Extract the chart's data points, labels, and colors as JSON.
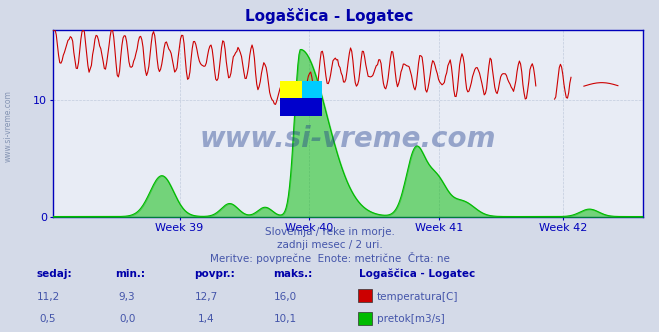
{
  "title": "Logaščica - Logatec",
  "title_color": "#0000aa",
  "bg_color": "#d4dae8",
  "plot_bg_color": "#e8ecf5",
  "grid_color": "#b8c4d8",
  "axis_color": "#0000bb",
  "text_color": "#4455aa",
  "watermark": "www.si-vreme.com",
  "watermark_color": "#1a3a8a",
  "subtitle_lines": [
    "Slovenija / reke in morje.",
    "zadnji mesec / 2 uri.",
    "Meritve: povprečne  Enote: metrične  Črta: ne"
  ],
  "xlabel_ticks": [
    "Week 39",
    "Week 40",
    "Week 41",
    "Week 42"
  ],
  "xlabel_tick_x": [
    0.215,
    0.435,
    0.655,
    0.865
  ],
  "ylim_max": 16.0,
  "flow_max": 10.1,
  "temp_color": "#cc0000",
  "flow_color": "#00bb00",
  "table_headers": [
    "sedaj:",
    "min.:",
    "povpr.:",
    "maks.:"
  ],
  "table_station": "Logaščica - Logatec",
  "table_rows": [
    {
      "label": "temperatura[C]",
      "color": "#cc0000",
      "values": [
        "11,2",
        "9,3",
        "12,7",
        "16,0"
      ]
    },
    {
      "label": "pretok[m3/s]",
      "color": "#00bb00",
      "values": [
        "0,5",
        "0,0",
        "1,4",
        "10,1"
      ]
    }
  ],
  "logo_colors": [
    "#ffff00",
    "#00ccff",
    "#0000cc"
  ],
  "yticks": [
    0,
    10
  ],
  "left_label": "www.si-vreme.com"
}
